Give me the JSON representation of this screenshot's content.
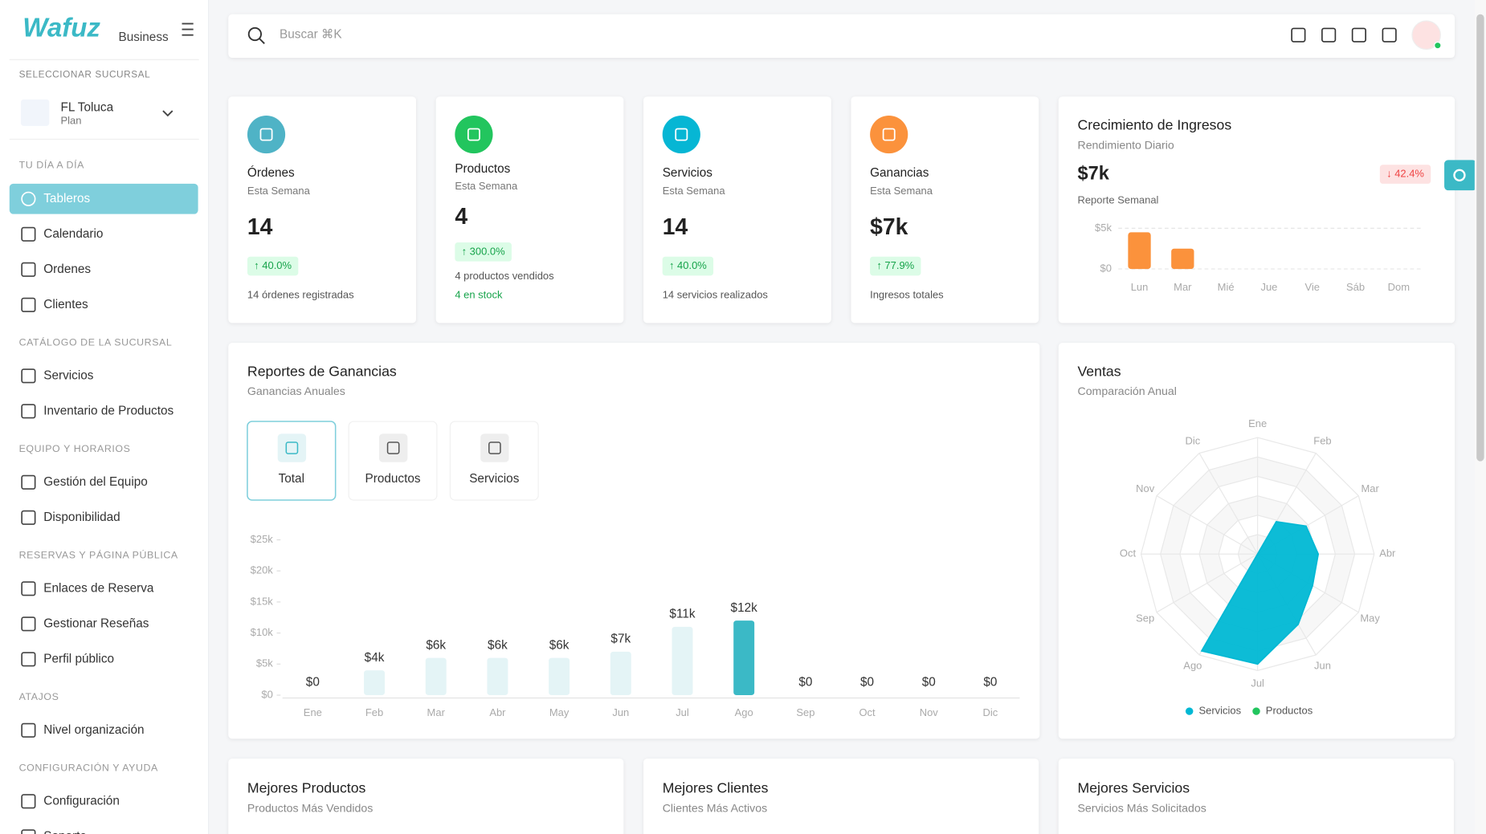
{
  "sidebar": {
    "brand": "Wafuz",
    "plan": "Business",
    "branch_label": "SELECCIONAR SUCURSAL",
    "branch": {
      "name": "FL Toluca",
      "plan": "Plan"
    },
    "sections": [
      {
        "title": "TU DÍA A DÍA",
        "items": [
          "Tableros",
          "Calendario",
          "Ordenes",
          "Clientes"
        ]
      },
      {
        "title": "CATÁLOGO DE LA SUCURSAL",
        "items": [
          "Servicios",
          "Inventario de Productos"
        ]
      },
      {
        "title": "EQUIPO Y HORARIOS",
        "items": [
          "Gestión del Equipo",
          "Disponibilidad"
        ]
      },
      {
        "title": "RESERVAS Y PÁGINA PÚBLICA",
        "items": [
          "Enlaces de Reserva",
          "Gestionar Reseñas",
          "Perfil público"
        ]
      },
      {
        "title": "ATAJOS",
        "items": [
          "Nivel organización"
        ]
      },
      {
        "title": "CONFIGURACIÓN Y AYUDA",
        "items": [
          "Configuración",
          "Soporte"
        ]
      }
    ]
  },
  "search": {
    "placeholder": "Buscar ⌘K"
  },
  "stats": [
    {
      "title": "Órdenes",
      "subtitle": "Esta Semana",
      "value": "14",
      "change": "↑ 40.0%",
      "note": "14 órdenes registradas",
      "color": "#4fb3c6"
    },
    {
      "title": "Productos",
      "subtitle": "Esta Semana",
      "value": "4",
      "change": "↑ 300.0%",
      "note": "4 productos vendidos",
      "extra": "4 en stock",
      "color": "#22c55e"
    },
    {
      "title": "Servicios",
      "subtitle": "Esta Semana",
      "value": "14",
      "change": "↑ 40.0%",
      "note": "14 servicios realizados",
      "color": "#06b6d4"
    },
    {
      "title": "Ganancias",
      "subtitle": "Esta Semana",
      "value": "$7k",
      "change": "↑ 77.9%",
      "note": "Ingresos totales",
      "color": "#fb923c"
    }
  ],
  "growth": {
    "title": "Crecimiento de Ingresos",
    "subtitle": "Rendimiento Diario",
    "value": "$7k",
    "change": "↓ 42.4%",
    "caption": "Reporte Semanal",
    "chart": {
      "type": "bar",
      "categories": [
        "Lun",
        "Mar",
        "Mié",
        "Jue",
        "Vie",
        "Sáb",
        "Dom"
      ],
      "values": [
        4500,
        2500,
        0,
        0,
        0,
        0,
        0
      ],
      "color": "#fb923c",
      "ylim": [
        0,
        5000
      ],
      "yticks": [
        {
          "value": 0,
          "label": "$0"
        },
        {
          "value": 5000,
          "label": "$5k"
        }
      ],
      "grid": true
    }
  },
  "earnings": {
    "title": "Reportes de Ganancias",
    "subtitle": "Ganancias Anuales",
    "tabs": [
      "Total",
      "Productos",
      "Servicios"
    ],
    "chart": {
      "type": "bar",
      "categories": [
        "Ene",
        "Feb",
        "Mar",
        "Abr",
        "May",
        "Jun",
        "Jul",
        "Ago",
        "Sep",
        "Oct",
        "Nov",
        "Dic"
      ],
      "values": [
        0,
        4000,
        6000,
        6000,
        6000,
        7000,
        11000,
        12000,
        0,
        0,
        0,
        0
      ],
      "value_labels": [
        "$0",
        "$4k",
        "$6k",
        "$6k",
        "$6k",
        "$7k",
        "$11k",
        "$12k",
        "$0",
        "$0",
        "$0",
        "$0"
      ],
      "colors": [
        "#e4f4f6",
        "#e4f4f6",
        "#e4f4f6",
        "#e4f4f6",
        "#e4f4f6",
        "#e4f4f6",
        "#e4f4f6",
        "#3bb9c6",
        "#e4f4f6",
        "#e4f4f6",
        "#e4f4f6",
        "#e4f4f6"
      ],
      "ylim": [
        0,
        25000
      ],
      "yticks": [
        {
          "value": 0,
          "label": "$0"
        },
        {
          "value": 5000,
          "label": "$5k"
        },
        {
          "value": 10000,
          "label": "$10k"
        },
        {
          "value": 15000,
          "label": "$15k"
        },
        {
          "value": 20000,
          "label": "$20k"
        },
        {
          "value": 25000,
          "label": "$25k"
        }
      ]
    }
  },
  "sales": {
    "title": "Ventas",
    "subtitle": "Comparación Anual",
    "chart": {
      "type": "radar",
      "categories": [
        "Ene",
        "Feb",
        "Mar",
        "Abr",
        "May",
        "Jun",
        "Jul",
        "Ago",
        "Sep",
        "Oct",
        "Nov",
        "Dic"
      ],
      "rlim": [
        0,
        12500
      ],
      "series": [
        {
          "name": "Servicios",
          "color": "#00b8d4",
          "values": [
            0,
            4000,
            6000,
            6500,
            6800,
            8700,
            11800,
            12000,
            0,
            0,
            0,
            0
          ]
        },
        {
          "name": "Productos",
          "color": "#22c55e",
          "values": [
            0,
            0,
            0,
            0,
            0,
            0,
            0,
            0,
            0,
            0,
            0,
            0
          ]
        }
      ]
    }
  },
  "bottom_cards": [
    {
      "title": "Mejores Productos",
      "subtitle": "Productos Más Vendidos"
    },
    {
      "title": "Mejores Clientes",
      "subtitle": "Clientes Más Activos"
    },
    {
      "title": "Mejores Servicios",
      "subtitle": "Servicios Más Solicitados"
    }
  ]
}
